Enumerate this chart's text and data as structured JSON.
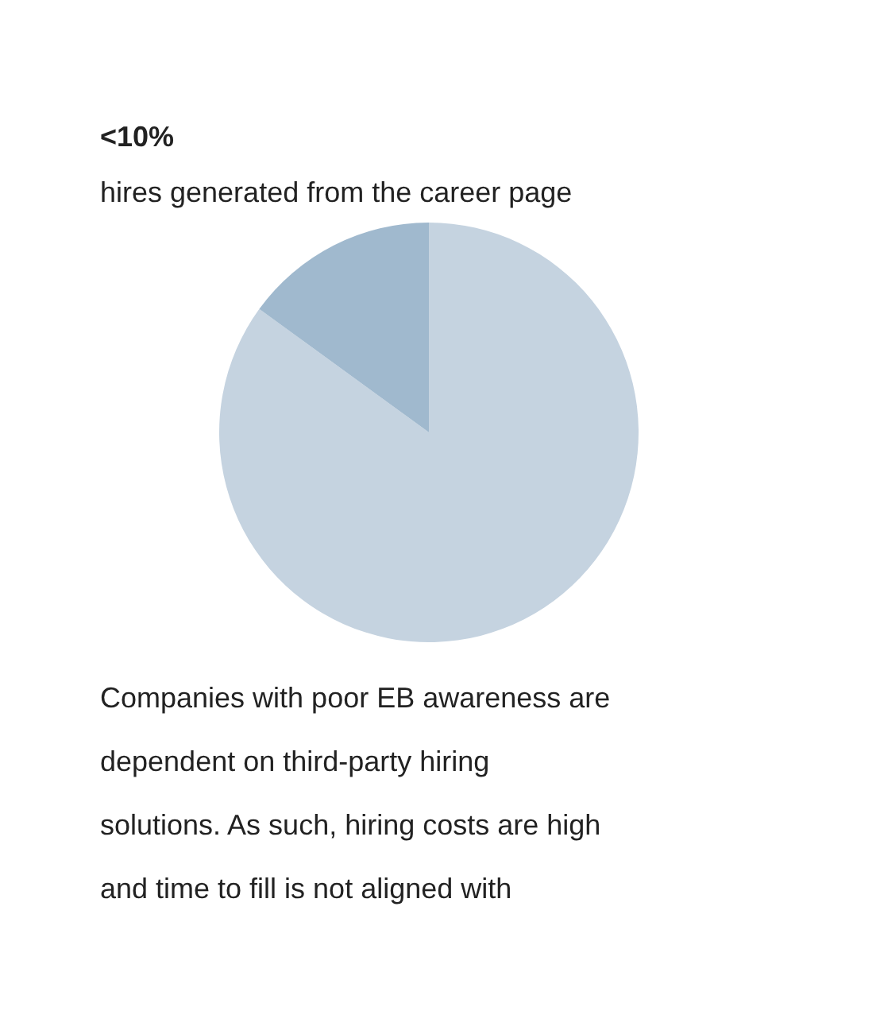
{
  "chart_data": {
    "type": "pie",
    "title": "<10%",
    "subtitle": "hires generated from the career page",
    "categories": [
      null,
      null
    ],
    "values": [
      85,
      15
    ],
    "colors": [
      "#c5d3e0",
      "#a0b9ce"
    ],
    "annotations": [
      "Companies with poor EB awareness are dependent on third-party hiring solutions. As such, hiring costs are high and time to fill is not aligned with"
    ]
  }
}
